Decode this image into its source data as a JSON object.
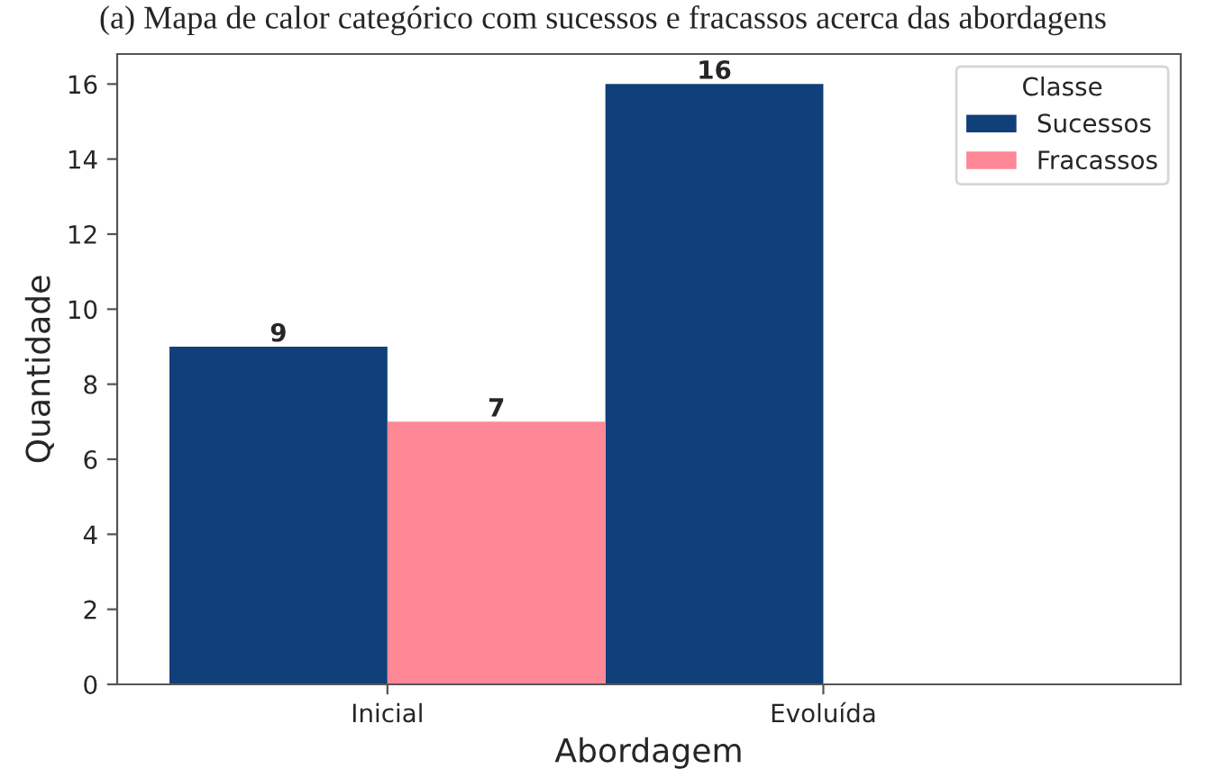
{
  "chart_data": {
    "type": "bar",
    "title": "(a) Mapa de calor categórico com sucessos e fracassos acerca das abordagens",
    "xlabel": "Abordagem",
    "ylabel": "Quantidade",
    "legend_title": "Classe",
    "categories": [
      "Inicial",
      "Evoluída"
    ],
    "series": [
      {
        "name": "Sucessos",
        "color": "#103f7a",
        "values": [
          9,
          16
        ]
      },
      {
        "name": "Fracassos",
        "color": "#ff8896",
        "values": [
          7,
          null
        ]
      }
    ],
    "ylim": [
      0,
      16.8
    ],
    "yticks": [
      0,
      2,
      4,
      6,
      8,
      10,
      12,
      14,
      16
    ],
    "data_labels": true,
    "legend": "top right",
    "grid": false
  }
}
